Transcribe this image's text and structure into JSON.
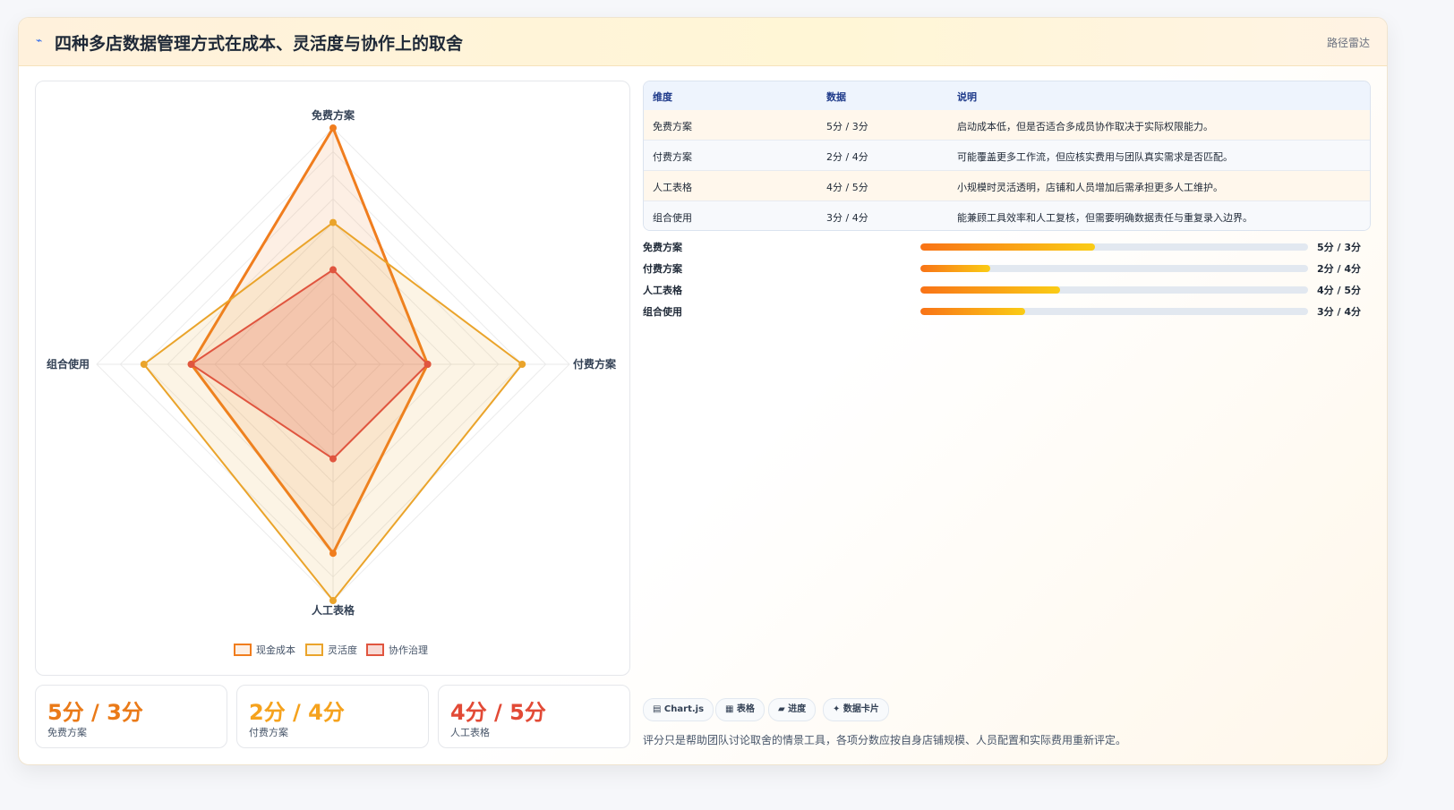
{
  "header": {
    "icon": "lightning-icon",
    "title": "四种多店数据管理方式在成本、灵活度与协作上的取舍",
    "tag": "路径雷达"
  },
  "chart_data": {
    "type": "radar",
    "axes": [
      "免费方案",
      "付费方案",
      "人工表格",
      "组合使用"
    ],
    "max": 5,
    "series": [
      {
        "name": "现金成本",
        "values": [
          5,
          2,
          4,
          3
        ],
        "color": "#f07d1e"
      },
      {
        "name": "灵活度",
        "values": [
          3,
          4,
          5,
          4
        ],
        "color": "#eaa42b"
      },
      {
        "name": "协作治理",
        "values": [
          2,
          2,
          2,
          3
        ],
        "color": "#e0553f"
      }
    ],
    "legend": [
      "现金成本",
      "灵活度",
      "协作治理"
    ],
    "grid": true
  },
  "stats": [
    {
      "value": "5分 / 3分",
      "label": "免费方案",
      "color": "#ea7a18"
    },
    {
      "value": "2分 / 4分",
      "label": "付费方案",
      "color": "#f5a21d"
    },
    {
      "value": "4分 / 5分",
      "label": "人工表格",
      "color": "#e24a36"
    }
  ],
  "table": {
    "headers": [
      "维度",
      "数据",
      "说明"
    ],
    "rows": [
      [
        "免费方案",
        "5分 / 3分",
        "启动成本低，但是否适合多成员协作取决于实际权限能力。"
      ],
      [
        "付费方案",
        "2分 / 4分",
        "可能覆盖更多工作流，但应核实费用与团队真实需求是否匹配。"
      ],
      [
        "人工表格",
        "4分 / 5分",
        "小规模时灵活透明，店铺和人员增加后需承担更多人工维护。"
      ],
      [
        "组合使用",
        "3分 / 4分",
        "能兼顾工具效率和人工复核，但需要明确数据责任与重复录入边界。"
      ]
    ]
  },
  "progress": [
    {
      "label": "免费方案",
      "value": "5分 / 3分",
      "fraction": 0.45
    },
    {
      "label": "付费方案",
      "value": "2分 / 4分",
      "fraction": 0.18
    },
    {
      "label": "人工表格",
      "value": "4分 / 5分",
      "fraction": 0.36
    },
    {
      "label": "组合使用",
      "value": "3分 / 4分",
      "fraction": 0.27
    }
  ],
  "chips": [
    "▤ Chart.js",
    "▦ 表格",
    "▰ 进度",
    "✦ 数据卡片"
  ],
  "footnote": "评分只是帮助团队讨论取舍的情景工具，各项分数应按自身店铺规模、人员配置和实际费用重新评定。"
}
